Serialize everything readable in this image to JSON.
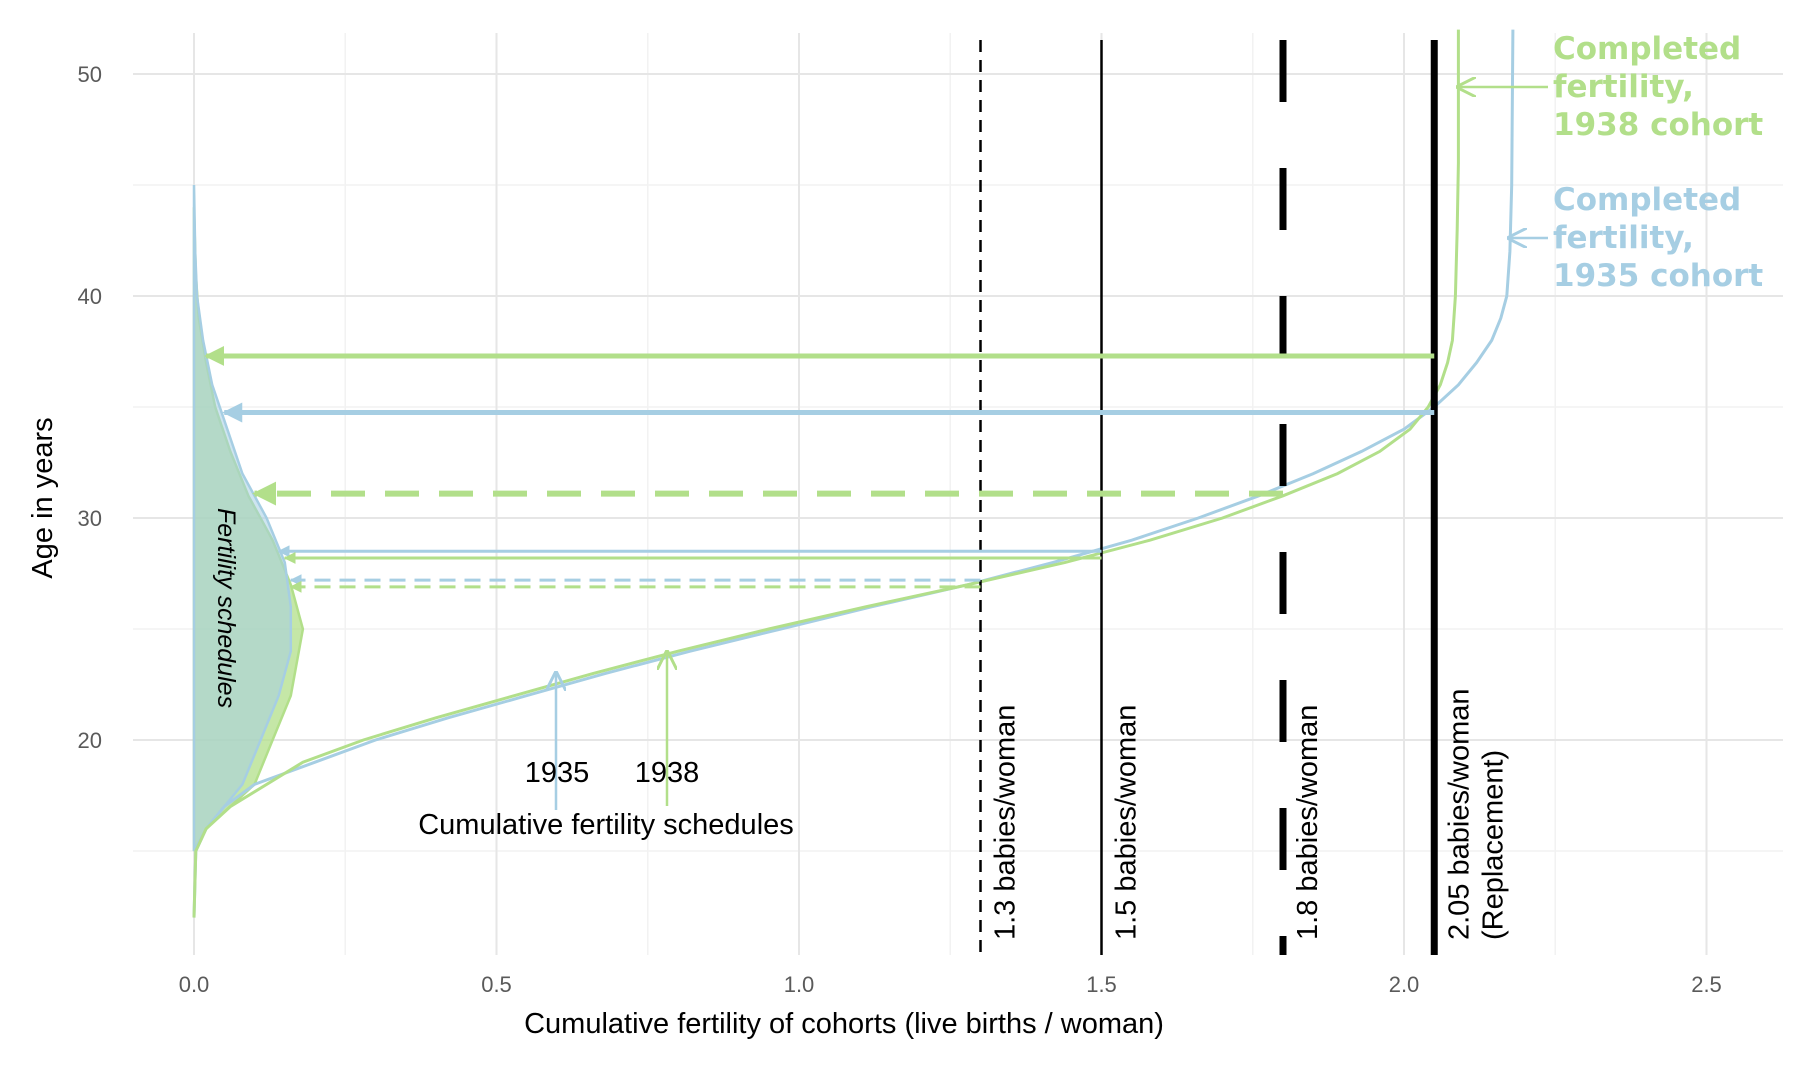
{
  "chart_data": {
    "type": "line",
    "title": "",
    "xlabel": "Cumulative fertility of cohorts (live births / woman)",
    "ylabel": "Age in years",
    "xlim": [
      0,
      2.62
    ],
    "ylim": [
      10,
      52
    ],
    "x_ticks": [
      "0.0",
      "0.5",
      "1.0",
      "1.5",
      "2.0",
      "2.5"
    ],
    "y_ticks": [
      "20",
      "30",
      "40",
      "50"
    ],
    "grid": true,
    "colors": {
      "c1935": "#a6cee3",
      "c1938": "#b2df8a",
      "black": "#000000"
    },
    "series": [
      {
        "name": "1935",
        "kind": "cumulative",
        "color": "#a6cee3",
        "points": [
          [
            0,
            12
          ],
          [
            0.003,
            15
          ],
          [
            0.02,
            16
          ],
          [
            0.05,
            17
          ],
          [
            0.1,
            18
          ],
          [
            0.2,
            19
          ],
          [
            0.3,
            20
          ],
          [
            0.42,
            21
          ],
          [
            0.55,
            22
          ],
          [
            0.68,
            23
          ],
          [
            0.82,
            24
          ],
          [
            0.97,
            25
          ],
          [
            1.12,
            26
          ],
          [
            1.28,
            27
          ],
          [
            1.42,
            28
          ],
          [
            1.55,
            29
          ],
          [
            1.66,
            30
          ],
          [
            1.76,
            31
          ],
          [
            1.85,
            32
          ],
          [
            1.93,
            33
          ],
          [
            2.0,
            34
          ],
          [
            2.05,
            35
          ],
          [
            2.09,
            36
          ],
          [
            2.12,
            37
          ],
          [
            2.145,
            38
          ],
          [
            2.16,
            39
          ],
          [
            2.17,
            40
          ],
          [
            2.175,
            42
          ],
          [
            2.178,
            45
          ],
          [
            2.18,
            52
          ]
        ]
      },
      {
        "name": "1938",
        "kind": "cumulative",
        "color": "#b2df8a",
        "points": [
          [
            0,
            12
          ],
          [
            0.003,
            15
          ],
          [
            0.02,
            16
          ],
          [
            0.06,
            17
          ],
          [
            0.18,
            19
          ],
          [
            0.28,
            20
          ],
          [
            0.4,
            21
          ],
          [
            0.53,
            22
          ],
          [
            0.66,
            23
          ],
          [
            0.8,
            24
          ],
          [
            0.95,
            25
          ],
          [
            1.11,
            26
          ],
          [
            1.28,
            27
          ],
          [
            1.44,
            28
          ],
          [
            1.58,
            29
          ],
          [
            1.7,
            30
          ],
          [
            1.8,
            31
          ],
          [
            1.89,
            32
          ],
          [
            1.96,
            33
          ],
          [
            2.01,
            34
          ],
          [
            2.04,
            35
          ],
          [
            2.06,
            36
          ],
          [
            2.072,
            37
          ],
          [
            2.08,
            38
          ],
          [
            2.085,
            40
          ],
          [
            2.088,
            43
          ],
          [
            2.09,
            46
          ],
          [
            2.09,
            52
          ]
        ]
      },
      {
        "name": "1935",
        "kind": "schedule",
        "color": "#a6cee3",
        "points": [
          [
            0,
            15
          ],
          [
            0.02,
            16
          ],
          [
            0.05,
            17
          ],
          [
            0.08,
            18
          ],
          [
            0.11,
            20
          ],
          [
            0.14,
            22
          ],
          [
            0.16,
            24
          ],
          [
            0.16,
            26
          ],
          [
            0.15,
            28
          ],
          [
            0.12,
            30
          ],
          [
            0.08,
            32
          ],
          [
            0.055,
            34
          ],
          [
            0.03,
            36
          ],
          [
            0.015,
            38
          ],
          [
            0.005,
            40
          ],
          [
            0.002,
            42
          ],
          [
            0,
            45
          ]
        ]
      },
      {
        "name": "1938",
        "kind": "schedule",
        "color": "#b2df8a",
        "points": [
          [
            0,
            15
          ],
          [
            0.02,
            16
          ],
          [
            0.06,
            17
          ],
          [
            0.1,
            18
          ],
          [
            0.13,
            20
          ],
          [
            0.16,
            22
          ],
          [
            0.18,
            25
          ],
          [
            0.16,
            27
          ],
          [
            0.13,
            29
          ],
          [
            0.09,
            31
          ],
          [
            0.06,
            33
          ],
          [
            0.035,
            35
          ],
          [
            0.02,
            37
          ],
          [
            0.008,
            39
          ],
          [
            0.003,
            41
          ],
          [
            0,
            44
          ]
        ]
      }
    ],
    "vlines": [
      {
        "x": 1.3,
        "label": "1.3 babies/woman",
        "style": "shortdash",
        "width": 2.5
      },
      {
        "x": 1.5,
        "label": "1.5 babies/woman",
        "style": "solid",
        "width": 2.5
      },
      {
        "x": 1.8,
        "label": "1.8 babies/woman",
        "style": "longdash",
        "width": 7
      },
      {
        "x": 2.05,
        "label": "2.05 babies/woman",
        "label2": "(Replacement)",
        "style": "solid",
        "width": 7
      }
    ],
    "hlines": [
      {
        "y": 37.3,
        "x_from": 2.05,
        "x_to": 0.02,
        "color": "#b2df8a",
        "width": 5,
        "dash": "solid"
      },
      {
        "y": 34.75,
        "x_from": 2.05,
        "x_to": 0.05,
        "color": "#a6cee3",
        "width": 5,
        "dash": "solid"
      },
      {
        "y": 31.1,
        "x_from": 1.8,
        "x_to": 0.1,
        "color": "#b2df8a",
        "width": 6,
        "dash": "long"
      },
      {
        "y": 28.5,
        "x_from": 1.5,
        "x_to": 0.14,
        "color": "#a6cee3",
        "width": 3,
        "dash": "solid"
      },
      {
        "y": 28.2,
        "x_from": 1.5,
        "x_to": 0.15,
        "color": "#b2df8a",
        "width": 3,
        "dash": "solid"
      },
      {
        "y": 27.2,
        "x_from": 1.3,
        "x_to": 0.16,
        "color": "#a6cee3",
        "width": 3,
        "dash": "medium"
      },
      {
        "y": 26.9,
        "x_from": 1.3,
        "x_to": 0.16,
        "color": "#b2df8a",
        "width": 3,
        "dash": "medium"
      }
    ],
    "annotations": {
      "fertility_schedules": "Fertility schedules",
      "label_1935": "1935",
      "label_1938": "1938",
      "cumulative_label": "Cumulative fertility schedules",
      "completed_1938": [
        "Completed",
        "fertility,",
        "1938 cohort"
      ],
      "completed_1935": [
        "Completed",
        "fertility,",
        "1935 cohort"
      ]
    }
  }
}
